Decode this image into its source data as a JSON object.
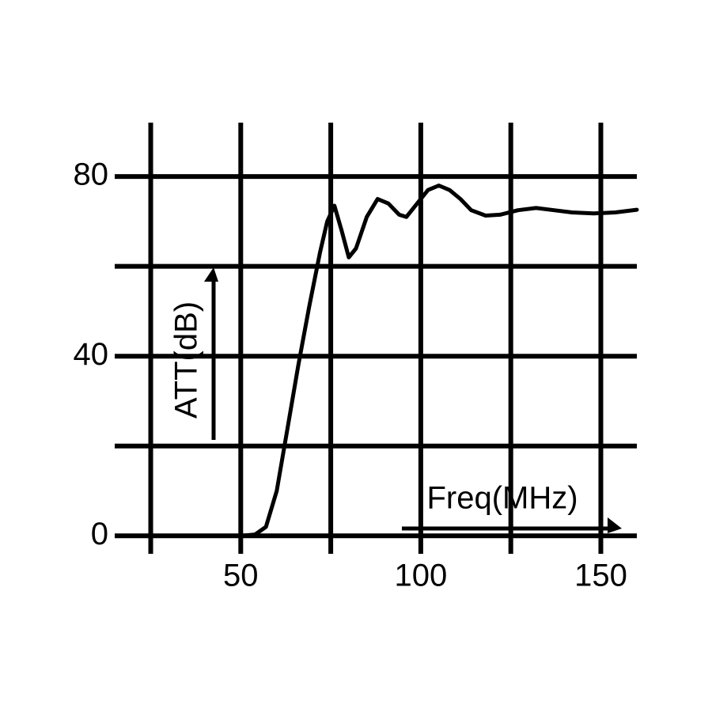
{
  "chart_data": {
    "type": "line",
    "x_label": "Freq(MHz)",
    "y_label": "ATT(dB)",
    "x": [
      25,
      50,
      54,
      57,
      60,
      63,
      66,
      69,
      72,
      74,
      76,
      78,
      80,
      82,
      85,
      88,
      91,
      94,
      96,
      99,
      102,
      105,
      108,
      111,
      114,
      118,
      122,
      127,
      132,
      137,
      142,
      148,
      154,
      160
    ],
    "values": [
      0,
      0,
      0.3,
      2,
      10,
      24,
      38,
      51,
      63,
      70,
      73.5,
      68,
      62,
      64,
      71,
      75,
      74,
      71.5,
      71,
      74,
      77,
      78,
      77,
      75,
      72.5,
      71.3,
      71.5,
      72.5,
      73,
      72.5,
      72,
      71.8,
      72,
      72.6
    ],
    "color": "#000000",
    "xlim": [
      15,
      160
    ],
    "ylim": [
      -4,
      92
    ],
    "xticks": [
      50,
      100,
      150
    ],
    "x_minor_ticks": [
      25,
      75,
      125
    ],
    "yticks": [
      0,
      40,
      80
    ],
    "y_minor_ticks": [
      20,
      60
    ],
    "grid": true
  }
}
